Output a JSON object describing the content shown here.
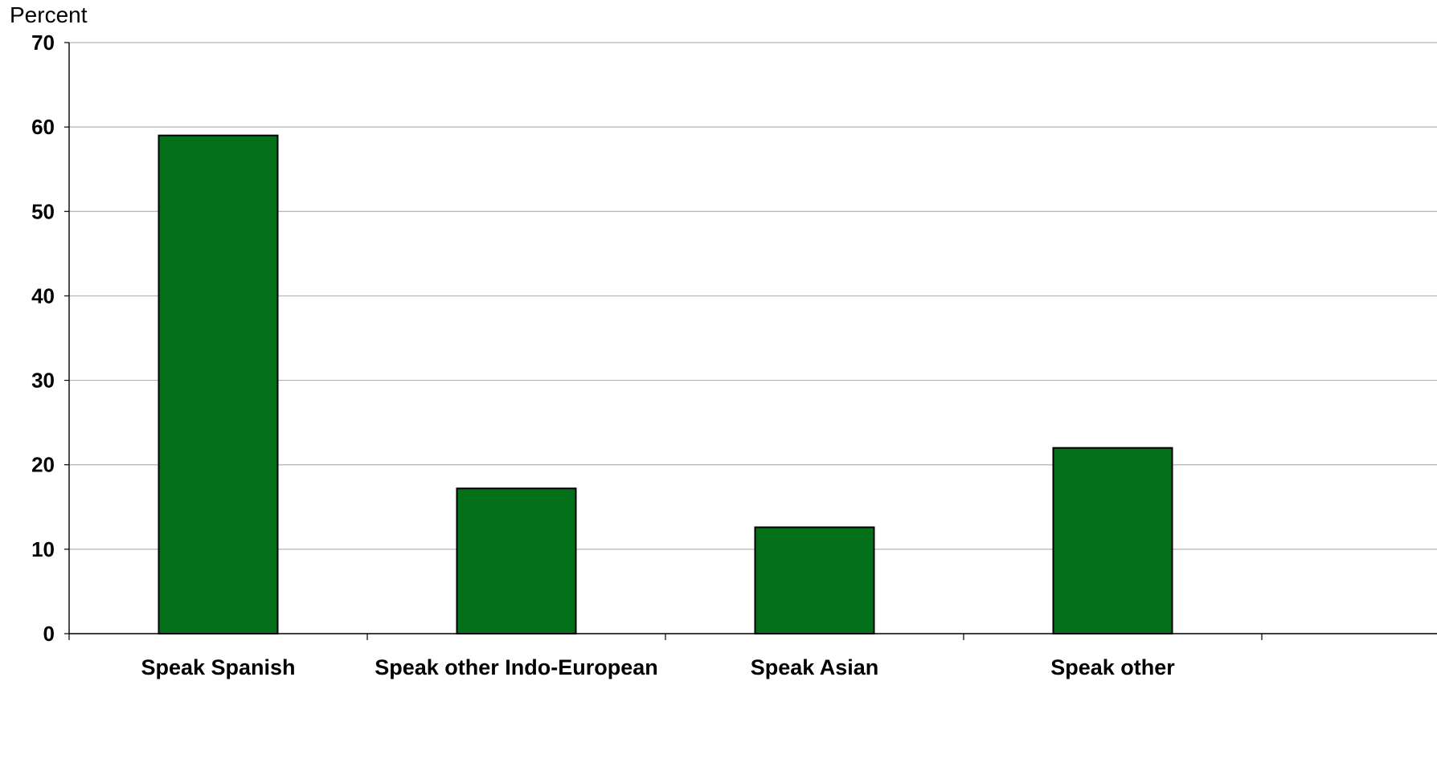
{
  "chart_data": {
    "type": "bar",
    "title": "",
    "xlabel": "",
    "ylabel": "Percent",
    "ylim": [
      0,
      70
    ],
    "yticks": [
      0,
      10,
      20,
      30,
      40,
      50,
      60,
      70
    ],
    "grid": true,
    "categories": [
      "Speak Spanish",
      "Speak other Indo-European",
      "Speak Asian",
      "Speak other"
    ],
    "values": [
      59,
      17.2,
      12.6,
      22
    ],
    "bar_color": "#037119",
    "bar_edge_color": "#000000",
    "grid_color": "#b3b3b3"
  }
}
